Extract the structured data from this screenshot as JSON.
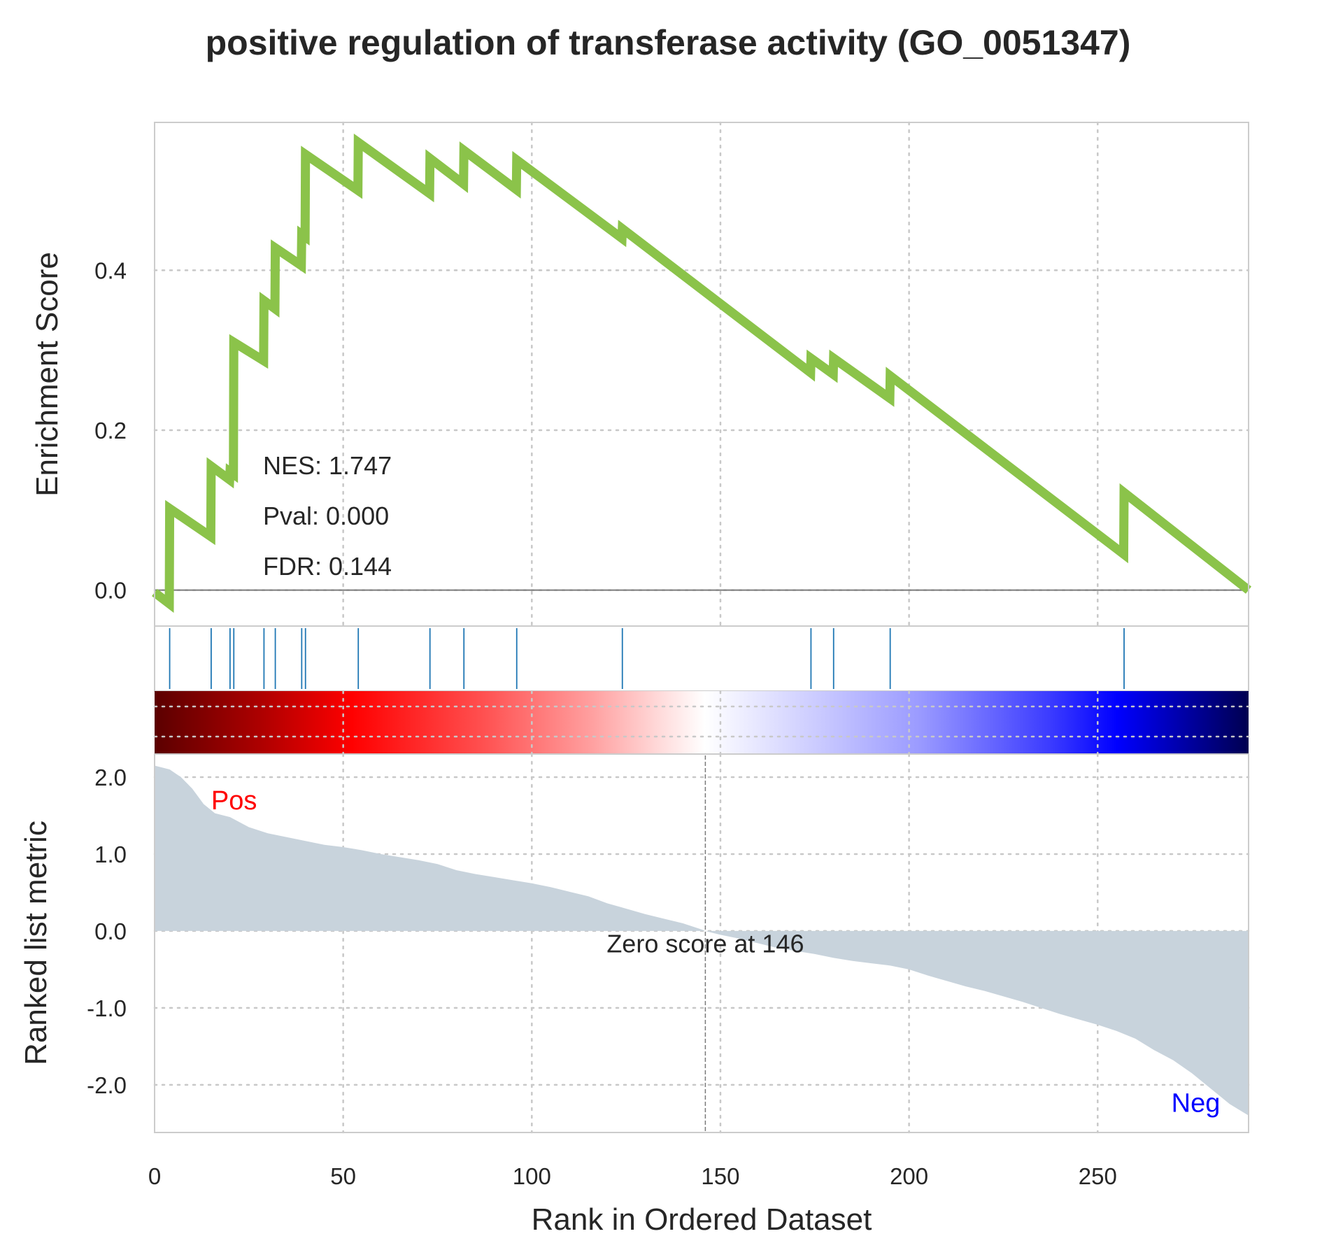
{
  "chart_data": {
    "type": "line",
    "title": "positive regulation of transferase activity (GO_0051347)",
    "xlabel": "Rank in Ordered Dataset",
    "xlim": [
      0,
      290
    ],
    "x_ticks": [
      0,
      50,
      100,
      150,
      200,
      250
    ],
    "x_tick_labels": [
      "0",
      "50",
      "100",
      "150",
      "200",
      "250"
    ],
    "grid": true,
    "colors": {
      "es_line": "#8bc34a",
      "hit_line": "#1f77b4",
      "metric_fill": "#c8d3dc",
      "pos_label": "#ff0000",
      "neg_label": "#0000ff",
      "text": "#262626"
    },
    "enrichment": {
      "ylabel": "Enrichment Score",
      "ylim": [
        -0.045,
        0.585
      ],
      "y_ticks": [
        0.0,
        0.2,
        0.4
      ],
      "y_tick_labels": [
        "0.0",
        "0.2",
        "0.4"
      ],
      "stats": [
        "NES: 1.747",
        "Pval: 0.000",
        "FDR: 0.144"
      ],
      "hit_ranks": [
        4,
        15,
        20,
        21,
        29,
        32,
        39,
        40,
        54,
        73,
        82,
        96,
        124,
        174,
        180,
        195,
        257
      ],
      "running_es": [
        [
          0,
          -0.003
        ],
        [
          3.9,
          -0.017
        ],
        [
          4,
          0.102
        ],
        [
          14.9,
          0.067
        ],
        [
          15,
          0.155
        ],
        [
          19.9,
          0.138
        ],
        [
          20,
          0.148
        ],
        [
          20.9,
          0.145
        ],
        [
          21,
          0.31
        ],
        [
          28.9,
          0.287
        ],
        [
          29,
          0.362
        ],
        [
          31.9,
          0.352
        ],
        [
          32,
          0.428
        ],
        [
          38.9,
          0.406
        ],
        [
          39,
          0.445
        ],
        [
          39.9,
          0.442
        ],
        [
          40,
          0.545
        ],
        [
          53.9,
          0.5
        ],
        [
          54,
          0.56
        ],
        [
          72.9,
          0.496
        ],
        [
          73,
          0.54
        ],
        [
          81.9,
          0.508
        ],
        [
          82,
          0.55
        ],
        [
          95.9,
          0.501
        ],
        [
          96,
          0.538
        ],
        [
          123.9,
          0.44
        ],
        [
          124,
          0.452
        ],
        [
          173.9,
          0.272
        ],
        [
          174,
          0.29
        ],
        [
          179.9,
          0.27
        ],
        [
          180,
          0.29
        ],
        [
          194.9,
          0.24
        ],
        [
          195,
          0.268
        ],
        [
          256.9,
          0.045
        ],
        [
          257,
          0.122
        ],
        [
          290,
          0.0
        ]
      ]
    },
    "heatmap": {
      "type": "heatmap",
      "description_colors": [
        "#5b0000",
        "#ff0000",
        "#ffffff",
        "#0000ff",
        "#000050"
      ]
    },
    "ranked_metric": {
      "ylabel": "Ranked list metric",
      "ylim": [
        -2.62,
        2.3
      ],
      "y_ticks": [
        2.0,
        1.0,
        0.0,
        -1.0,
        -2.0
      ],
      "y_tick_labels": [
        "2.0",
        "1.0",
        "0.0",
        "-1.0",
        "-2.0"
      ],
      "pos_label": "Pos",
      "neg_label": "Neg",
      "zero_cross_rank": 146,
      "zero_label": "Zero score at 146",
      "metric_curve": [
        [
          0,
          2.15
        ],
        [
          4,
          2.1
        ],
        [
          7,
          2.0
        ],
        [
          10,
          1.85
        ],
        [
          13,
          1.65
        ],
        [
          16,
          1.53
        ],
        [
          20,
          1.48
        ],
        [
          25,
          1.35
        ],
        [
          30,
          1.27
        ],
        [
          35,
          1.22
        ],
        [
          40,
          1.17
        ],
        [
          45,
          1.12
        ],
        [
          50,
          1.09
        ],
        [
          55,
          1.05
        ],
        [
          60,
          1.0
        ],
        [
          65,
          0.96
        ],
        [
          70,
          0.92
        ],
        [
          75,
          0.87
        ],
        [
          80,
          0.79
        ],
        [
          85,
          0.74
        ],
        [
          90,
          0.7
        ],
        [
          95,
          0.66
        ],
        [
          100,
          0.62
        ],
        [
          105,
          0.57
        ],
        [
          110,
          0.51
        ],
        [
          115,
          0.45
        ],
        [
          120,
          0.36
        ],
        [
          125,
          0.29
        ],
        [
          130,
          0.22
        ],
        [
          135,
          0.16
        ],
        [
          140,
          0.1
        ],
        [
          145,
          0.02
        ],
        [
          146,
          0.0
        ],
        [
          150,
          -0.05
        ],
        [
          155,
          -0.1
        ],
        [
          160,
          -0.16
        ],
        [
          165,
          -0.22
        ],
        [
          170,
          -0.26
        ],
        [
          175,
          -0.3
        ],
        [
          180,
          -0.35
        ],
        [
          185,
          -0.39
        ],
        [
          190,
          -0.42
        ],
        [
          195,
          -0.45
        ],
        [
          200,
          -0.5
        ],
        [
          205,
          -0.58
        ],
        [
          210,
          -0.65
        ],
        [
          215,
          -0.72
        ],
        [
          220,
          -0.78
        ],
        [
          225,
          -0.85
        ],
        [
          230,
          -0.92
        ],
        [
          235,
          -1.0
        ],
        [
          240,
          -1.08
        ],
        [
          245,
          -1.15
        ],
        [
          250,
          -1.22
        ],
        [
          255,
          -1.3
        ],
        [
          260,
          -1.4
        ],
        [
          265,
          -1.55
        ],
        [
          270,
          -1.68
        ],
        [
          275,
          -1.85
        ],
        [
          280,
          -2.05
        ],
        [
          285,
          -2.25
        ],
        [
          290,
          -2.4
        ]
      ]
    }
  }
}
